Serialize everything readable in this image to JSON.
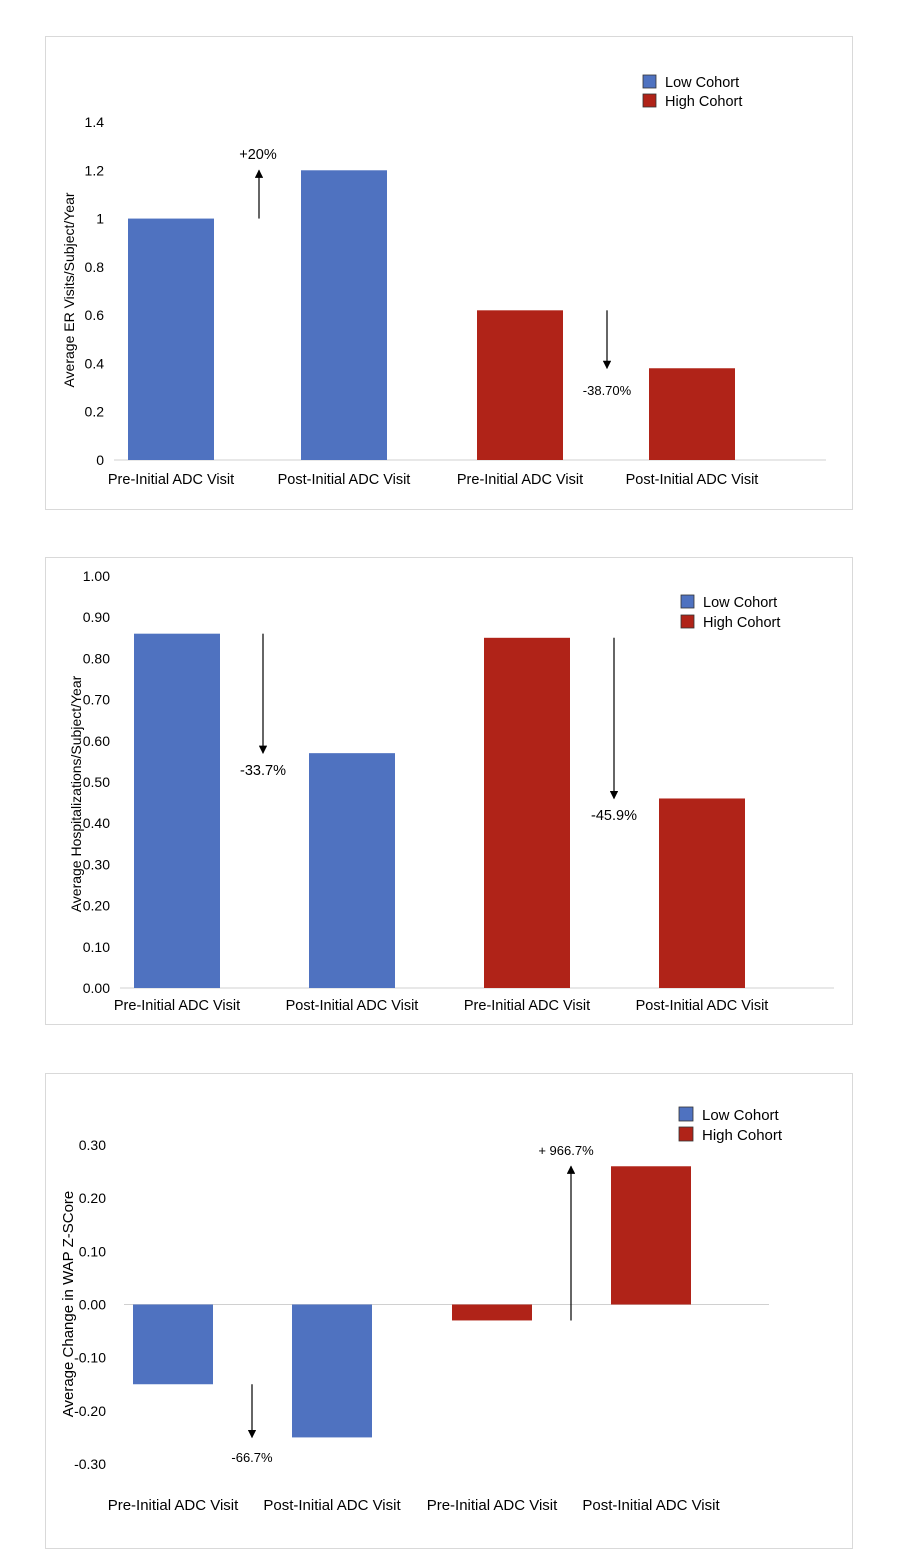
{
  "chart_data": [
    {
      "type": "bar",
      "ylabel": "Average ER Visits/Subject/Year",
      "categories": [
        "Pre-Initial ADC Visit",
        "Post-Initial ADC Visit",
        "Pre-Initial ADC Visit",
        "Post-Initial ADC Visit"
      ],
      "values": [
        1.0,
        1.2,
        0.62,
        0.38
      ],
      "ylim": [
        0,
        1.4
      ],
      "yticks": [
        "0",
        "0.2",
        "0.4",
        "0.6",
        "0.8",
        "1",
        "1.2",
        "1.4"
      ],
      "series": [
        {
          "name": "Low Cohort",
          "color": "#4f72c0"
        },
        {
          "name": "High Cohort",
          "color": "#b02318"
        }
      ],
      "series_of_bar": [
        0,
        0,
        1,
        1
      ],
      "annotations": [
        {
          "text": "+20%",
          "direction": "up"
        },
        {
          "text": "-38.70%",
          "direction": "down"
        }
      ],
      "legend": "top-right",
      "grid": false
    },
    {
      "type": "bar",
      "ylabel": "Average Hospitalizations/Subject/Year",
      "categories": [
        "Pre-Initial ADC Visit",
        "Post-Initial ADC Visit",
        "Pre-Initial ADC Visit",
        "Post-Initial ADC Visit"
      ],
      "values": [
        0.86,
        0.57,
        0.85,
        0.46
      ],
      "ylim": [
        0,
        1.0
      ],
      "yticks": [
        "0.00",
        "0.10",
        "0.20",
        "0.30",
        "0.40",
        "0.50",
        "0.60",
        "0.70",
        "0.80",
        "0.90",
        "1.00"
      ],
      "series": [
        {
          "name": "Low Cohort",
          "color": "#4f72c0"
        },
        {
          "name": "High Cohort",
          "color": "#b02318"
        }
      ],
      "series_of_bar": [
        0,
        0,
        1,
        1
      ],
      "annotations": [
        {
          "text": "-33.7%",
          "direction": "down"
        },
        {
          "text": "-45.9%",
          "direction": "down"
        }
      ],
      "legend": "top-right",
      "grid": false
    },
    {
      "type": "bar",
      "ylabel": "Average Change in WAP Z-SCore",
      "categories": [
        "Pre-Initial ADC Visit",
        "Post-Initial ADC Visit",
        "Pre-Initial ADC Visit",
        "Post-Initial ADC Visit"
      ],
      "values": [
        -0.15,
        -0.25,
        -0.03,
        0.26
      ],
      "ylim": [
        -0.3,
        0.3
      ],
      "yticks": [
        "-0.30",
        "-0.20",
        "-0.10",
        "0.00",
        "0.10",
        "0.20",
        "0.30"
      ],
      "series": [
        {
          "name": "Low Cohort",
          "color": "#4f72c0"
        },
        {
          "name": "High Cohort",
          "color": "#b02318"
        }
      ],
      "series_of_bar": [
        0,
        0,
        1,
        1
      ],
      "annotations": [
        {
          "text": "-66.7%",
          "direction": "down"
        },
        {
          "text": "+ 966.7%",
          "direction": "up"
        }
      ],
      "legend": "top-right",
      "grid": false
    }
  ]
}
